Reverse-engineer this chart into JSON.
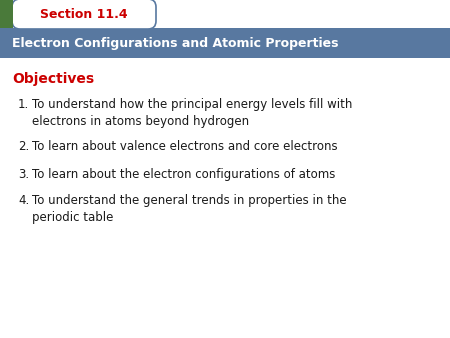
{
  "section_label": "Section 11.4",
  "header_text": "Electron Configurations and Atomic Properties",
  "objectives_label": "Objectives",
  "items": [
    "To understand how the principal energy levels fill with\nelectrons in atoms beyond hydrogen",
    "To learn about valence electrons and core electrons",
    "To learn about the electron configurations of atoms",
    "To understand the general trends in properties in the\nperiodic table"
  ],
  "bg_color": "#ffffff",
  "header_bg_color": "#5878a0",
  "header_text_color": "#ffffff",
  "section_tab_bg": "#ffffff",
  "section_tab_border": "#5878a0",
  "section_label_color": "#cc0000",
  "objectives_color": "#cc0000",
  "item_text_color": "#1a1a1a",
  "green_rect_color": "#4a7a3a",
  "fig_w": 4.5,
  "fig_h": 3.38,
  "dpi": 100
}
